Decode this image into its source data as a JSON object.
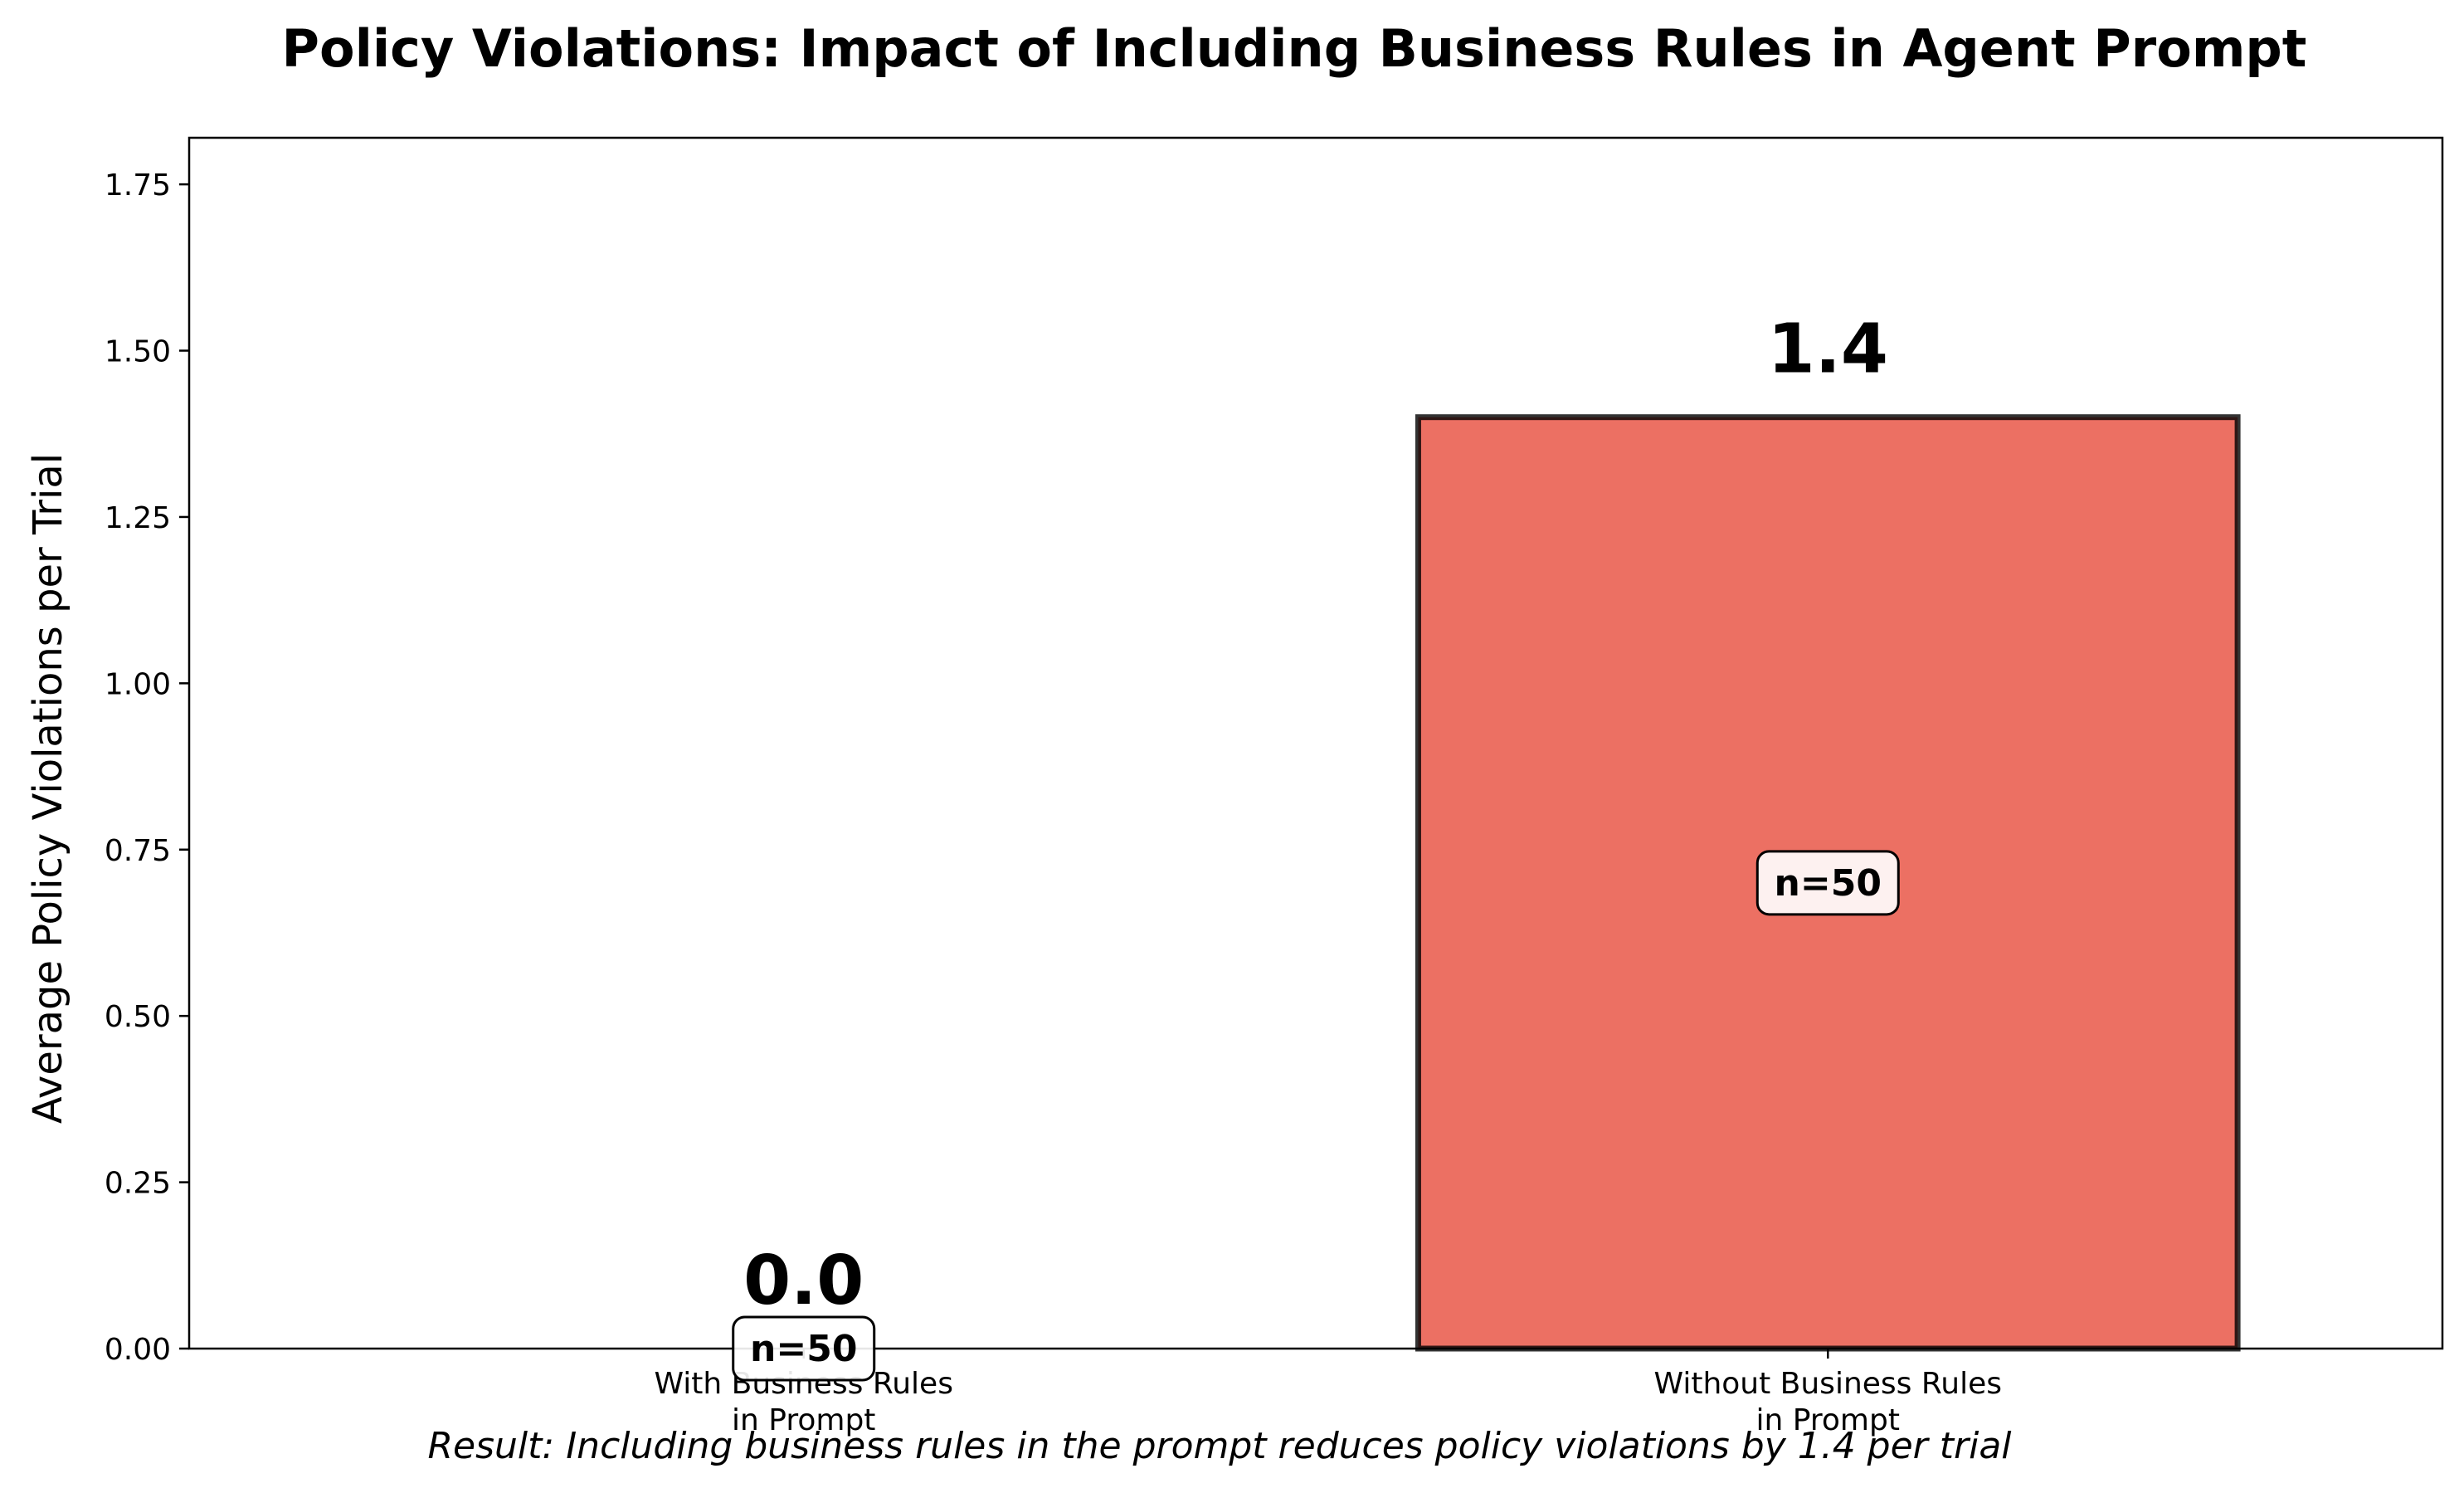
{
  "chart_data": {
    "type": "bar",
    "title": "Policy Violations: Impact of Including Business Rules in Agent Prompt",
    "xlabel": "",
    "ylabel": "Average Policy Violations per Trial",
    "categories": [
      [
        "With Business Rules",
        "in Prompt"
      ],
      [
        "Without Business Rules",
        "in Prompt"
      ]
    ],
    "values": [
      0.0,
      1.4
    ],
    "value_labels": [
      "0.0",
      "1.4"
    ],
    "sample_labels": [
      "n=50",
      "n=50"
    ],
    "bar_colors": [
      "#2ecc71",
      "#e74c3c"
    ],
    "ylim": [
      0,
      1.82
    ],
    "yticks": [
      0.0,
      0.25,
      0.5,
      0.75,
      1.0,
      1.25,
      1.5,
      1.75
    ],
    "ytick_labels": [
      "0.00",
      "0.25",
      "0.50",
      "0.75",
      "1.00",
      "1.25",
      "1.50",
      "1.75"
    ],
    "grid": false,
    "annotation": "Result: Including business rules in the prompt reduces policy violations by 1.4 per trial"
  }
}
